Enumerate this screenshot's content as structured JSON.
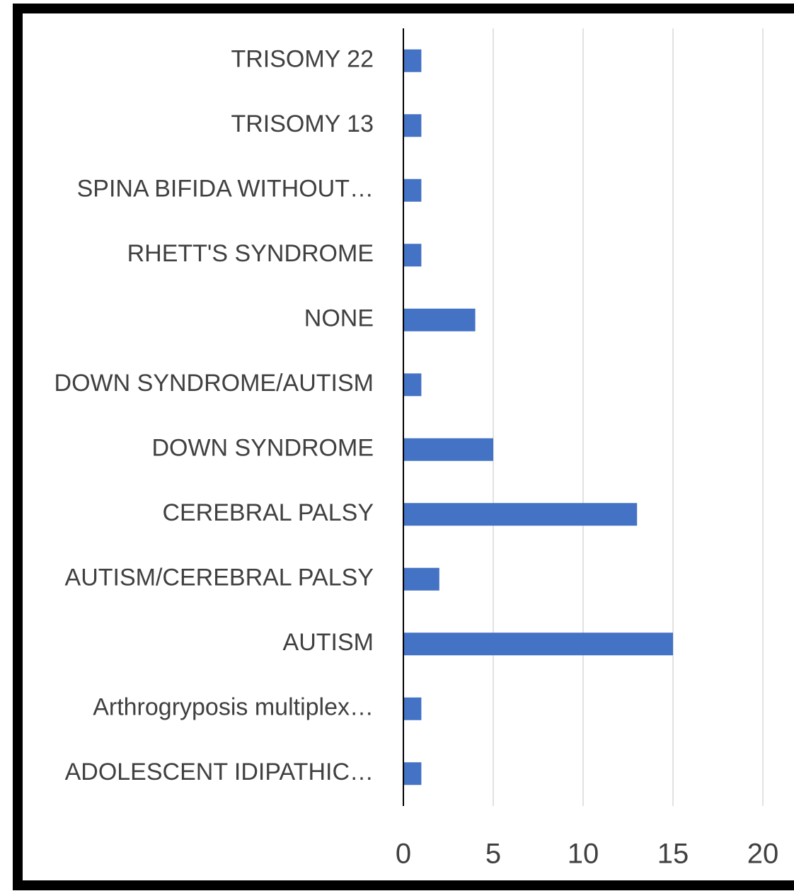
{
  "chart_data": {
    "type": "bar",
    "orientation": "horizontal",
    "categories": [
      "TRISOMY 22",
      "TRISOMY 13",
      "SPINA BIFIDA WITHOUT…",
      "RHETT'S SYNDROME",
      "NONE",
      "DOWN SYNDROME/AUTISM",
      "DOWN SYNDROME",
      "CEREBRAL PALSY",
      "AUTISM/CEREBRAL PALSY",
      "AUTISM",
      "Arthrogryposis multiplex…",
      "ADOLESCENT IDIPATHIC…"
    ],
    "values": [
      1,
      1,
      1,
      1,
      4,
      1,
      5,
      13,
      2,
      15,
      1,
      1
    ],
    "color": "#4472c4",
    "xlim": [
      0,
      20
    ],
    "xticks": [
      0,
      5,
      10,
      15,
      20
    ],
    "grid": true
  }
}
